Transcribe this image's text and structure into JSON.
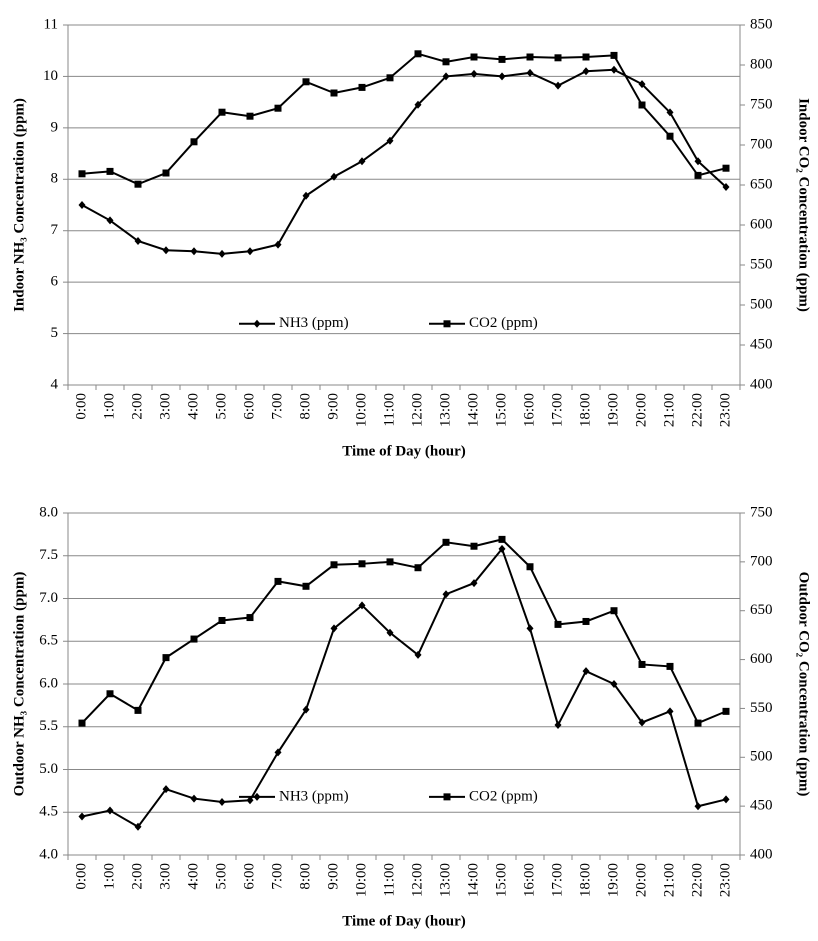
{
  "chart_data": [
    {
      "type": "line",
      "xlabel": "Time of Day (hour)",
      "ylabel": "Indoor NH₃ Concentration (ppm)",
      "y2label": "Indoor CO₂ Concentration (ppm)",
      "categories": [
        "0:00",
        "1:00",
        "2:00",
        "3:00",
        "4:00",
        "5:00",
        "6:00",
        "7:00",
        "8:00",
        "9:00",
        "10:00",
        "11:00",
        "12:00",
        "13:00",
        "14:00",
        "15:00",
        "16:00",
        "17:00",
        "18:00",
        "19:00",
        "20:00",
        "21:00",
        "22:00",
        "23:00"
      ],
      "series": [
        {
          "name": "NH3 (ppm)",
          "color": "#000000",
          "marker": "diamond",
          "axis": "y",
          "values": [
            7.5,
            7.2,
            6.8,
            6.62,
            6.6,
            6.55,
            6.6,
            6.73,
            7.68,
            8.05,
            8.35,
            8.75,
            9.45,
            10.0,
            10.05,
            10.0,
            10.07,
            9.82,
            10.1,
            10.13,
            9.85,
            9.3,
            8.35,
            7.85
          ]
        },
        {
          "name": "CO2 (ppm)",
          "color": "#000000",
          "marker": "square",
          "axis": "y2",
          "values": [
            664,
            667,
            651,
            665,
            704,
            741,
            736,
            746,
            779,
            765,
            772,
            784,
            814,
            804,
            810,
            807,
            810,
            809,
            810,
            812,
            750,
            711,
            662,
            671
          ]
        }
      ],
      "ylim": [
        4,
        11
      ],
      "yticks": [
        4,
        5,
        6,
        7,
        8,
        9,
        10,
        11
      ],
      "y2lim": [
        400,
        850
      ],
      "y2ticks": [
        400,
        450,
        500,
        550,
        600,
        650,
        700,
        750,
        800,
        850
      ],
      "grid": true,
      "legend": "lower center"
    },
    {
      "type": "line",
      "xlabel": "Time of Day (hour)",
      "ylabel": "Outdoor NH₃ Concentration (ppm)",
      "y2label": "Outdoor CO₂ Concentration (ppm)",
      "categories": [
        "0:00",
        "1:00",
        "2:00",
        "3:00",
        "4:00",
        "5:00",
        "6:00",
        "7:00",
        "8:00",
        "9:00",
        "10:00",
        "11:00",
        "12:00",
        "13:00",
        "14:00",
        "15:00",
        "16:00",
        "17:00",
        "18:00",
        "19:00",
        "20:00",
        "21:00",
        "22:00",
        "23:00"
      ],
      "series": [
        {
          "name": "NH3 (ppm)",
          "color": "#000000",
          "marker": "diamond",
          "axis": "y",
          "values": [
            4.45,
            4.52,
            4.33,
            4.77,
            4.66,
            4.62,
            4.64,
            5.2,
            5.7,
            6.65,
            6.92,
            6.6,
            6.34,
            7.05,
            7.18,
            7.58,
            6.65,
            5.52,
            6.15,
            6.0,
            5.55,
            5.68,
            4.57,
            4.65
          ]
        },
        {
          "name": "CO2 (ppm)",
          "color": "#000000",
          "marker": "square",
          "axis": "y2",
          "values": [
            535,
            565,
            548,
            602,
            621,
            640,
            643,
            680,
            675,
            697,
            698,
            700,
            694,
            720,
            716,
            723,
            695,
            636,
            639,
            650,
            595,
            593,
            535,
            547
          ]
        }
      ],
      "ylim": [
        4,
        8
      ],
      "yticks": [
        {
          "value": 4,
          "label": "4.0"
        },
        4.5,
        {
          "value": 5,
          "label": "5.0"
        },
        5.5,
        {
          "value": 6,
          "label": "6.0"
        },
        6.5,
        {
          "value": 7,
          "label": "7.0"
        },
        7.5,
        {
          "value": 8,
          "label": "8.0"
        }
      ],
      "y2lim": [
        400,
        750
      ],
      "y2ticks": [
        400,
        450,
        500,
        550,
        600,
        650,
        700,
        750
      ],
      "grid": true,
      "legend": "lower center"
    }
  ]
}
